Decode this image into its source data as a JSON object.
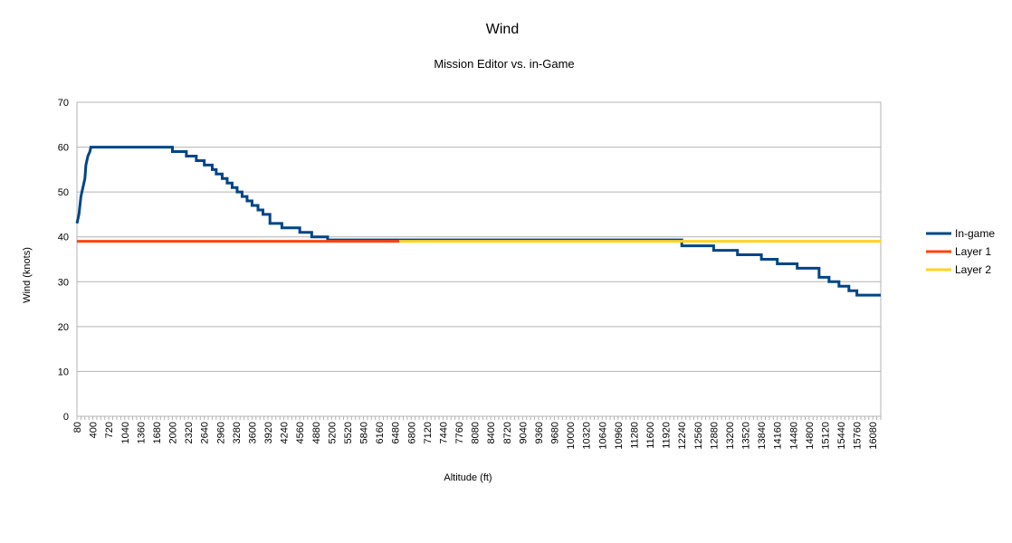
{
  "chart_data": {
    "type": "line",
    "title": "Wind",
    "subtitle": "Mission Editor vs. in-Game",
    "xlabel": "Altitude (ft)",
    "ylabel": "Wind (knots)",
    "ylim": [
      0,
      70
    ],
    "yticks": [
      0,
      10,
      20,
      30,
      40,
      50,
      60,
      70
    ],
    "xlim": [
      80,
      16240
    ],
    "xticks": [
      80,
      400,
      720,
      1040,
      1360,
      1680,
      2000,
      2320,
      2640,
      2960,
      3280,
      3600,
      3920,
      4240,
      4560,
      4880,
      5200,
      5520,
      5840,
      6160,
      6480,
      6800,
      7120,
      7440,
      7760,
      8080,
      8400,
      8720,
      9040,
      9360,
      9680,
      10000,
      10320,
      10640,
      10960,
      11280,
      11600,
      11920,
      12240,
      12560,
      12880,
      13200,
      13520,
      13840,
      14160,
      14480,
      14800,
      15120,
      15440,
      15760,
      16080
    ],
    "grid": true,
    "legend_position": "right",
    "colors": {
      "In-game": "#004586",
      "Layer 1": "#ff420e",
      "Layer 2": "#ffd320",
      "grid": "#b3b3b3"
    },
    "series": [
      {
        "name": "In-game",
        "points": [
          [
            80,
            43
          ],
          [
            120,
            45
          ],
          [
            160,
            49
          ],
          [
            200,
            51
          ],
          [
            240,
            53
          ],
          [
            260,
            56
          ],
          [
            300,
            58
          ],
          [
            340,
            59
          ],
          [
            360,
            60
          ],
          [
            2000,
            60
          ],
          [
            2000,
            59
          ],
          [
            2280,
            59
          ],
          [
            2280,
            58
          ],
          [
            2480,
            58
          ],
          [
            2480,
            57
          ],
          [
            2640,
            57
          ],
          [
            2640,
            56
          ],
          [
            2800,
            56
          ],
          [
            2800,
            55
          ],
          [
            2880,
            55
          ],
          [
            2880,
            54
          ],
          [
            3000,
            54
          ],
          [
            3000,
            53
          ],
          [
            3100,
            53
          ],
          [
            3100,
            52
          ],
          [
            3200,
            52
          ],
          [
            3200,
            51
          ],
          [
            3300,
            51
          ],
          [
            3300,
            50
          ],
          [
            3400,
            50
          ],
          [
            3400,
            49
          ],
          [
            3500,
            49
          ],
          [
            3500,
            48
          ],
          [
            3600,
            48
          ],
          [
            3600,
            47
          ],
          [
            3720,
            47
          ],
          [
            3720,
            46
          ],
          [
            3820,
            46
          ],
          [
            3820,
            45
          ],
          [
            3960,
            45
          ],
          [
            3960,
            43
          ],
          [
            4200,
            43
          ],
          [
            4200,
            42
          ],
          [
            4560,
            42
          ],
          [
            4560,
            41
          ],
          [
            4800,
            41
          ],
          [
            4800,
            40
          ],
          [
            5120,
            40
          ],
          [
            5120,
            39.3
          ],
          [
            12240,
            39.3
          ],
          [
            12240,
            38
          ],
          [
            12880,
            38
          ],
          [
            12880,
            37
          ],
          [
            13360,
            37
          ],
          [
            13360,
            36
          ],
          [
            13840,
            36
          ],
          [
            13840,
            35
          ],
          [
            14160,
            35
          ],
          [
            14160,
            34
          ],
          [
            14560,
            34
          ],
          [
            14560,
            33
          ],
          [
            15000,
            33
          ],
          [
            15000,
            31
          ],
          [
            15200,
            31
          ],
          [
            15200,
            30
          ],
          [
            15400,
            30
          ],
          [
            15400,
            29
          ],
          [
            15600,
            29
          ],
          [
            15600,
            28
          ],
          [
            15760,
            28
          ],
          [
            15760,
            27
          ],
          [
            16240,
            27
          ]
        ]
      },
      {
        "name": "Layer 1",
        "points": [
          [
            80,
            39
          ],
          [
            6560,
            39
          ]
        ]
      },
      {
        "name": "Layer 2",
        "points": [
          [
            6560,
            39
          ],
          [
            16240,
            39
          ]
        ]
      }
    ]
  }
}
